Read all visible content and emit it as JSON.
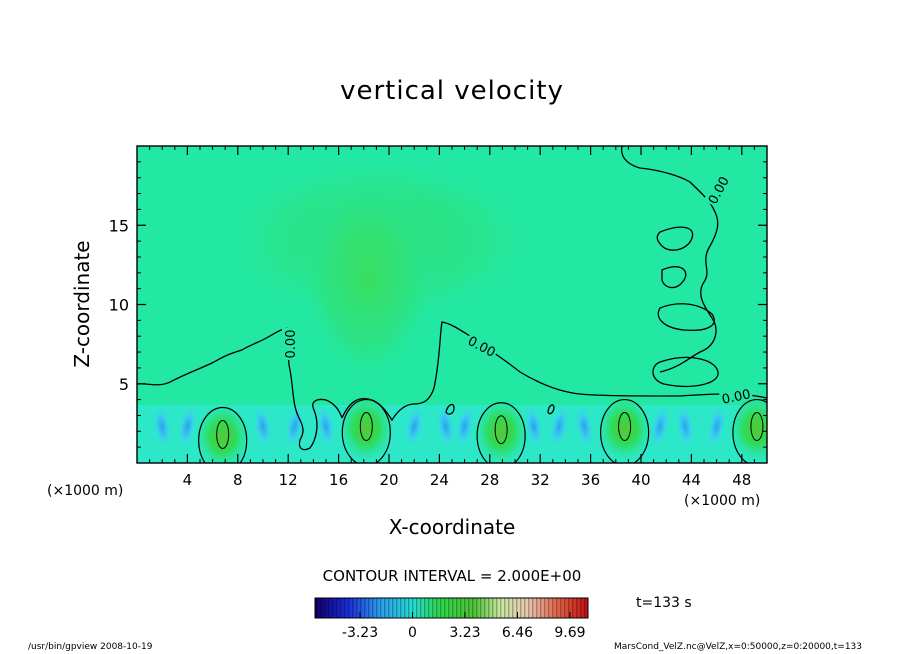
{
  "chart_data": {
    "type": "heatmap",
    "title": "vertical velocity",
    "xlabel": "X-coordinate",
    "ylabel": "Z-coordinate",
    "x_unit": "(×1000 m)",
    "x_unit_right": "(×1000 m)",
    "xlim": [
      0,
      50
    ],
    "ylim": [
      0,
      20
    ],
    "x_ticks": [
      4,
      8,
      12,
      16,
      20,
      24,
      28,
      32,
      36,
      40,
      44,
      48
    ],
    "y_ticks": [
      5,
      10,
      15
    ],
    "contour_label": "0.00",
    "contour_interval": "CONTOUR INTERVAL = 2.000E+00",
    "updraft_centers": [
      {
        "x": 6.8,
        "z": 1.8
      },
      {
        "x": 18.2,
        "z": 2.3
      },
      {
        "x": 28.9,
        "z": 2.1
      },
      {
        "x": 38.7,
        "z": 2.3
      },
      {
        "x": 49.2,
        "z": 2.3
      }
    ],
    "colorbar": {
      "ticks": [
        "-3.23",
        "0",
        "3.23",
        "6.46",
        "9.69"
      ],
      "tick_values": [
        -3.23,
        0,
        3.23,
        6.46,
        9.69
      ],
      "min": -6.0,
      "max": 10.8
    },
    "time_label": "t=133 s",
    "footer_left": "/usr/bin/gpview  2008-10-19",
    "footer_right": "MarsCond_VelZ.nc@VelZ,x=0:50000,z=0:20000,t=133"
  }
}
